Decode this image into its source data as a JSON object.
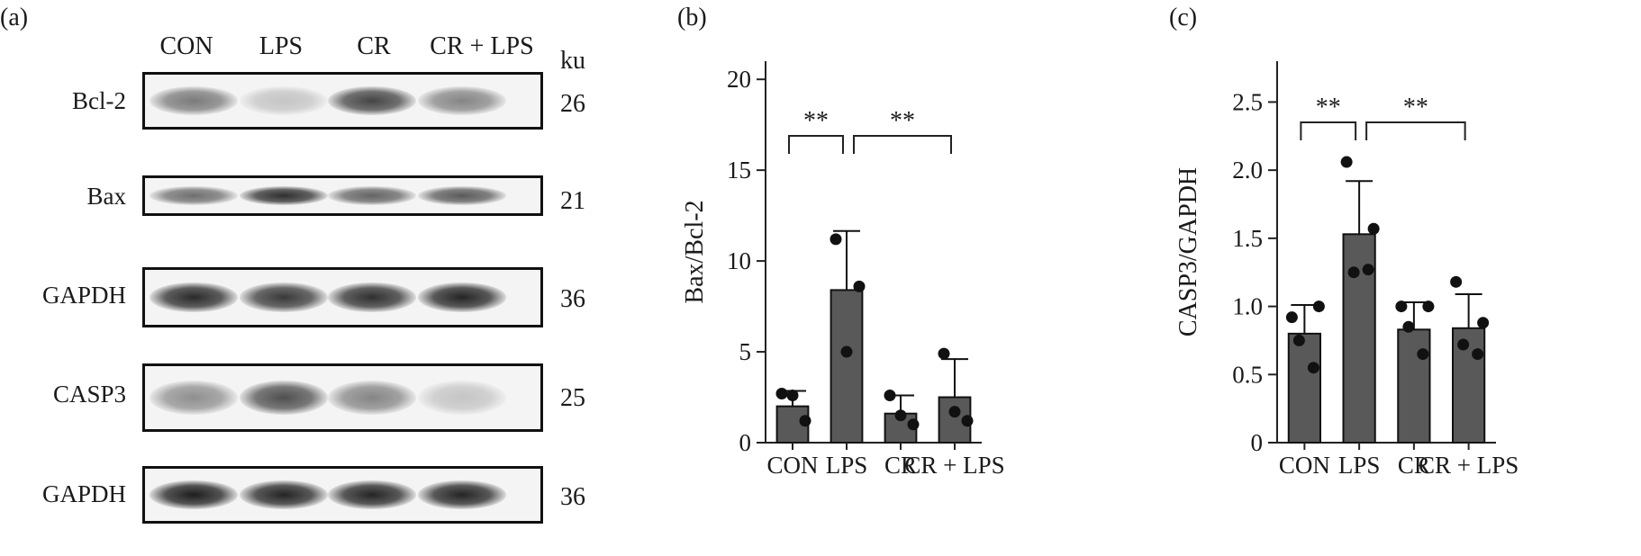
{
  "panels": {
    "a": {
      "label": "(a)"
    },
    "b": {
      "label": "(b)"
    },
    "c": {
      "label": "(c)"
    }
  },
  "western_blot": {
    "lanes": [
      "CON",
      "LPS",
      "CR",
      "CR + LPS"
    ],
    "unit_label": "ku",
    "rows": [
      {
        "protein": "Bcl-2",
        "mw": "26",
        "intensity": [
          0.55,
          0.2,
          0.8,
          0.5
        ]
      },
      {
        "protein": "Bax",
        "mw": "21",
        "intensity": [
          0.6,
          0.9,
          0.65,
          0.7
        ]
      },
      {
        "protein": "GAPDH",
        "mw": "36",
        "intensity": [
          0.92,
          0.85,
          0.9,
          0.95
        ]
      },
      {
        "protein": "CASP3",
        "mw": "25",
        "intensity": [
          0.45,
          0.75,
          0.5,
          0.2
        ]
      },
      {
        "protein": "GAPDH",
        "mw": "36",
        "intensity": [
          0.98,
          0.95,
          0.95,
          0.95
        ]
      }
    ]
  },
  "chart_data": [
    {
      "type": "bar",
      "panel": "(b)",
      "categories": [
        "CON",
        "LPS",
        "CR",
        "CR + LPS"
      ],
      "values": [
        2.0,
        8.4,
        1.6,
        2.5
      ],
      "errors": [
        0.85,
        3.25,
        1.0,
        2.1
      ],
      "points": [
        [
          2.7,
          1.2,
          2.6
        ],
        [
          11.2,
          8.6,
          5.0
        ],
        [
          2.6,
          1.0,
          1.5
        ],
        [
          4.9,
          1.2,
          1.7
        ]
      ],
      "ylabel": "Bax/Bcl-2",
      "ylim": [
        0,
        21
      ],
      "yticks": [
        0,
        5,
        10,
        15,
        20
      ],
      "significance": [
        {
          "from": 0,
          "to": 1,
          "label": "**"
        },
        {
          "from": 1,
          "to": 3,
          "label": "**"
        }
      ],
      "bar_color": "#595959"
    },
    {
      "type": "bar",
      "panel": "(c)",
      "categories": [
        "CON",
        "LPS",
        "CR",
        "CR + LPS"
      ],
      "values": [
        0.8,
        1.53,
        0.83,
        0.84
      ],
      "errors": [
        0.21,
        0.39,
        0.2,
        0.25
      ],
      "points": [
        [
          0.92,
          1.0,
          0.75,
          0.55
        ],
        [
          2.06,
          1.57,
          1.25,
          1.27
        ],
        [
          1.0,
          1.0,
          0.85,
          0.65
        ],
        [
          1.18,
          0.88,
          0.72,
          0.65
        ]
      ],
      "ylabel": "CASP3/GAPDH",
      "ylim": [
        0,
        2.8
      ],
      "yticks": [
        0,
        0.5,
        1.0,
        1.5,
        2.0,
        2.5
      ],
      "yticklabels": [
        "0",
        "0.5",
        "1.0",
        "1.5",
        "2.0",
        "2.5"
      ],
      "significance": [
        {
          "from": 0,
          "to": 1,
          "label": "**"
        },
        {
          "from": 1,
          "to": 3,
          "label": "**"
        }
      ],
      "bar_color": "#595959"
    }
  ]
}
